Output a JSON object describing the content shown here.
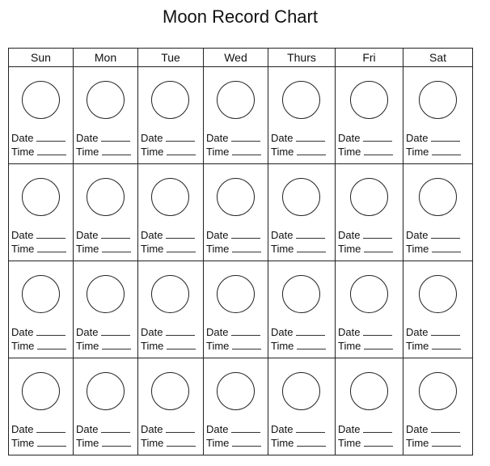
{
  "title": "Moon Record Chart",
  "days": [
    "Sun",
    "Mon",
    "Tue",
    "Wed",
    "Thurs",
    "Fri",
    "Sat"
  ],
  "weeks": 4,
  "labels": {
    "date": "Date",
    "time": "Time"
  }
}
